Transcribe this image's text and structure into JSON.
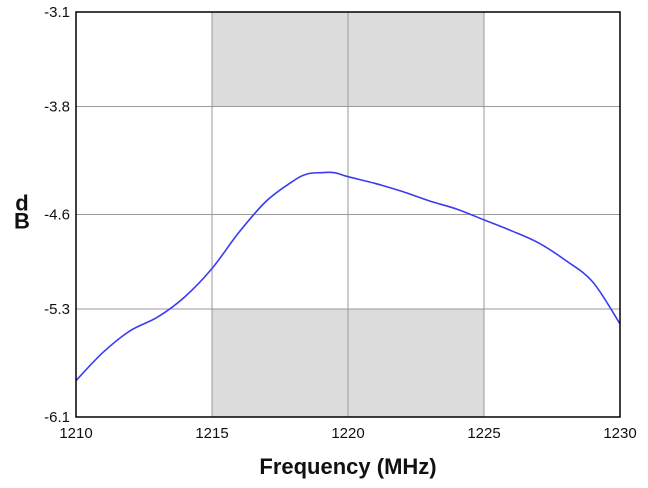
{
  "chart_data": {
    "type": "line",
    "title": "",
    "xlabel": "Frequency (MHz)",
    "ylabel": "dB",
    "xlim": [
      1210,
      1230
    ],
    "ylim": [
      -6.1,
      -3.1
    ],
    "xticks": [
      1210,
      1215,
      1220,
      1225,
      1230
    ],
    "xtick_labels": [
      "1210",
      "1215",
      "1220",
      "1225",
      "1230"
    ],
    "yticks": [
      -6.1,
      -5.3,
      -4.6,
      -3.8,
      -3.1
    ],
    "ytick_labels": [
      "-6.1",
      "-5.3",
      "-4.6",
      "-3.8",
      "-3.1"
    ],
    "grid": true,
    "legend": "none",
    "shaded_regions": [
      {
        "x": [
          1215,
          1225
        ],
        "y": [
          -3.1,
          -3.8
        ]
      },
      {
        "x": [
          1215,
          1225
        ],
        "y": [
          -5.3,
          -6.1
        ]
      }
    ],
    "series": [
      {
        "color": "#3b3bef",
        "x": [
          1210,
          1211,
          1212,
          1213,
          1214,
          1215,
          1216,
          1217,
          1218,
          1218.5,
          1219,
          1219.5,
          1220,
          1221,
          1222,
          1223,
          1224,
          1225,
          1226,
          1227,
          1228,
          1229,
          1230
        ],
        "y": [
          -5.83,
          -5.62,
          -5.46,
          -5.36,
          -5.21,
          -5.0,
          -4.73,
          -4.5,
          -4.35,
          -4.3,
          -4.29,
          -4.29,
          -4.32,
          -4.37,
          -4.43,
          -4.5,
          -4.56,
          -4.64,
          -4.72,
          -4.81,
          -4.94,
          -5.1,
          -5.41
        ]
      }
    ],
    "colors": {
      "shade": "#dcdcdc",
      "grid": "#9a9a9a",
      "axis": "#000000"
    }
  }
}
